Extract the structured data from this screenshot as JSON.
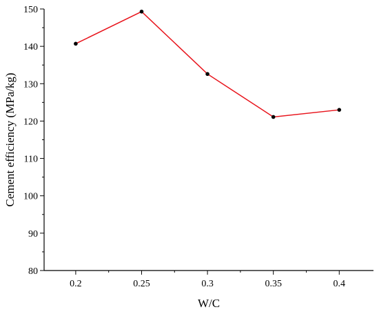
{
  "chart_data": {
    "type": "line",
    "title": "",
    "xlabel": "W/C",
    "ylabel": "Cement efficiency (MPa/kg)",
    "x": [
      0.2,
      0.25,
      0.3,
      0.35,
      0.4
    ],
    "x_tick_labels": [
      "0.2",
      "0.25",
      "0.3",
      "0.35",
      "0.4"
    ],
    "series": [
      {
        "values": [
          140.7,
          149.3,
          132.6,
          121.1,
          123.0
        ]
      }
    ],
    "xlim": [
      0.176,
      0.426
    ],
    "ylim": [
      80,
      150
    ],
    "y_ticks": [
      80,
      90,
      100,
      110,
      120,
      130,
      140,
      150
    ],
    "y_tick_labels": [
      "80",
      "90",
      "100",
      "110",
      "120",
      "130",
      "140",
      "150"
    ],
    "grid": false,
    "legend": "none",
    "colors": {
      "line": "#e8131b",
      "marker": "#000000",
      "axis": "#000000"
    }
  }
}
